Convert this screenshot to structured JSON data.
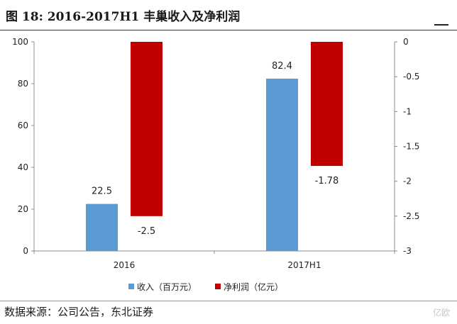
{
  "header": {
    "title": "图 18: 2016-2017H1 丰巢收入及净利润"
  },
  "footer": {
    "source": "数据来源：公司公告，东北证券"
  },
  "watermark": "亿欧",
  "chart_data": {
    "type": "bar",
    "title": "",
    "categories": [
      "2016",
      "2017H1"
    ],
    "series": [
      {
        "name": "收入（百万元）",
        "axis": "left",
        "color": "#5b9bd5",
        "values": [
          22.5,
          82.4
        ],
        "labels": [
          "22.5",
          "82.4"
        ]
      },
      {
        "name": "净利润（亿元）",
        "axis": "right",
        "color": "#c00000",
        "values": [
          -2.5,
          -1.78
        ],
        "labels": [
          "-2.5",
          "-1.78"
        ]
      }
    ],
    "y_left": {
      "range": [
        0,
        100
      ],
      "ticks": [
        "0",
        "20",
        "40",
        "60",
        "80",
        "100"
      ]
    },
    "y_right": {
      "range": [
        -3,
        0
      ],
      "ticks": [
        "0",
        "-0.5",
        "-1",
        "-1.5",
        "-2",
        "-2.5",
        "-3"
      ]
    },
    "grid": false,
    "legend_position": "bottom-center"
  }
}
